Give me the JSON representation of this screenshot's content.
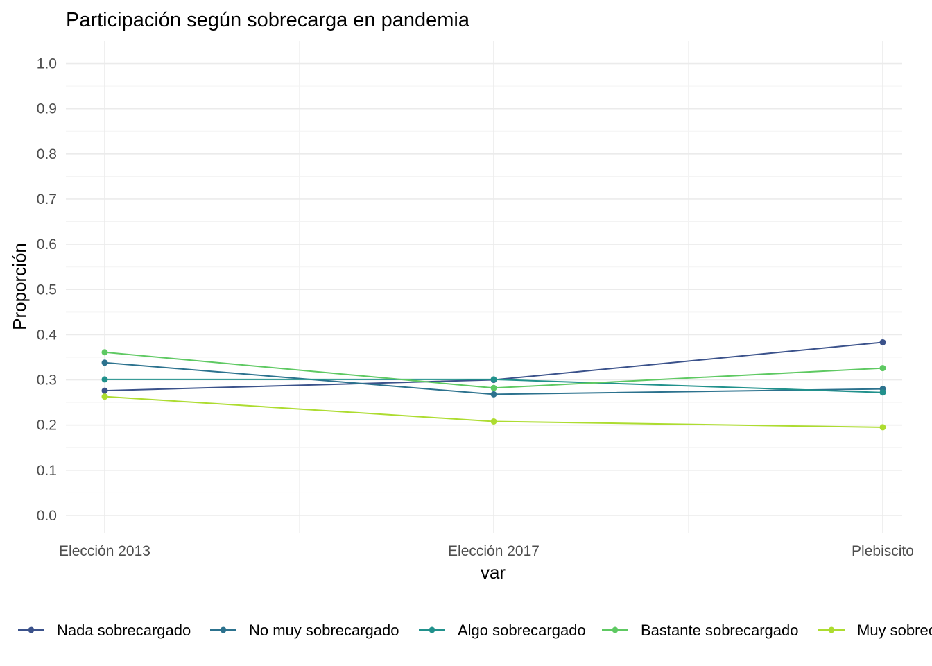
{
  "chart_data": {
    "type": "line",
    "title": "Participación según sobrecarga en pandemia",
    "xlabel": "var",
    "ylabel": "Proporción",
    "categories": [
      "Elección 2013",
      "Elección 2017",
      "Plebiscito"
    ],
    "ylim": [
      -0.04,
      1.05
    ],
    "yticks": [
      "0.0",
      "0.1",
      "0.2",
      "0.3",
      "0.4",
      "0.5",
      "0.6",
      "0.7",
      "0.8",
      "0.9",
      "1.0"
    ],
    "grid": true,
    "legend_position": "bottom",
    "series": [
      {
        "name": "Nada sobrecargado",
        "color": "#3b528b",
        "values": [
          0.276,
          0.3,
          0.383
        ]
      },
      {
        "name": "No muy sobrecargado",
        "color": "#2c728e",
        "values": [
          0.338,
          0.268,
          0.28
        ]
      },
      {
        "name": "Algo sobrecargado",
        "color": "#21918c",
        "values": [
          0.301,
          0.301,
          0.272
        ]
      },
      {
        "name": "Bastante sobrecargado",
        "color": "#5ec962",
        "values": [
          0.361,
          0.282,
          0.326
        ]
      },
      {
        "name": "Muy sobrecargado",
        "color": "#addc30",
        "values": [
          0.263,
          0.208,
          0.195
        ]
      }
    ]
  }
}
